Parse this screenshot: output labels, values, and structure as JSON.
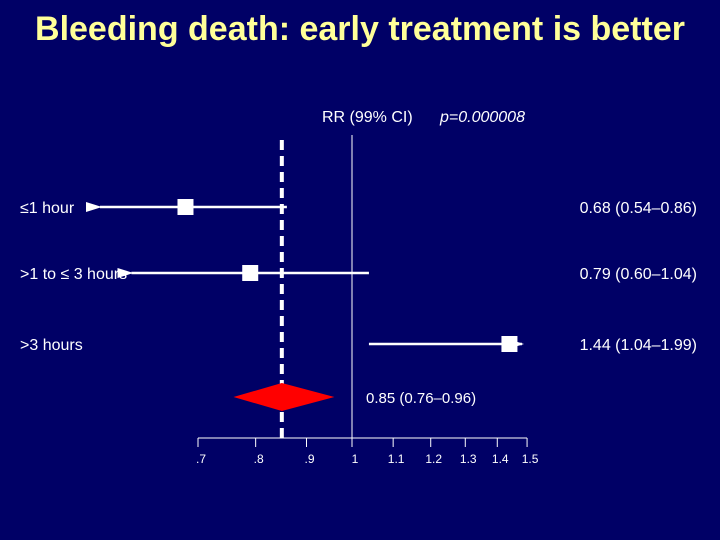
{
  "title": "Bleeding death: early treatment is better",
  "colors": {
    "background": "#000066",
    "title": "#ffff99",
    "lines": "#ffffff",
    "summary": "#ff0000"
  },
  "chart_data": {
    "type": "forest",
    "column_header": "RR (99% CI)",
    "p_value": "p=0.000008",
    "scale": "log",
    "axis": {
      "ticks": [
        0.7,
        0.8,
        0.9,
        1,
        1.1,
        1.2,
        1.3,
        1.4,
        1.5
      ],
      "tick_labels": [
        ".7",
        ".8",
        ".9",
        "1",
        "1.1",
        "1.2",
        "1.3",
        "1.4",
        "1.5"
      ],
      "range": [
        0.7,
        1.5
      ]
    },
    "reference_line": 1,
    "pooled_line": 0.85,
    "rows": [
      {
        "label": "≤1 hour",
        "rr": 0.68,
        "lo": 0.54,
        "hi": 0.86,
        "text": "0.68 (0.54–0.86)",
        "arrow_left": true,
        "arrow_right": false
      },
      {
        "label": ">1 to ≤ 3 hours",
        "rr": 0.79,
        "lo": 0.6,
        "hi": 1.04,
        "text": "0.79 (0.60–1.04)",
        "arrow_left": true,
        "arrow_right": false
      },
      {
        "label": ">3 hours",
        "rr": 1.44,
        "lo": 1.04,
        "hi": 1.99,
        "text": "1.44 (1.04–1.99)",
        "arrow_left": false,
        "arrow_right": true
      }
    ],
    "summary": {
      "rr": 0.85,
      "lo": 0.76,
      "hi": 0.96,
      "text": "0.85 (0.76–0.96)"
    }
  }
}
